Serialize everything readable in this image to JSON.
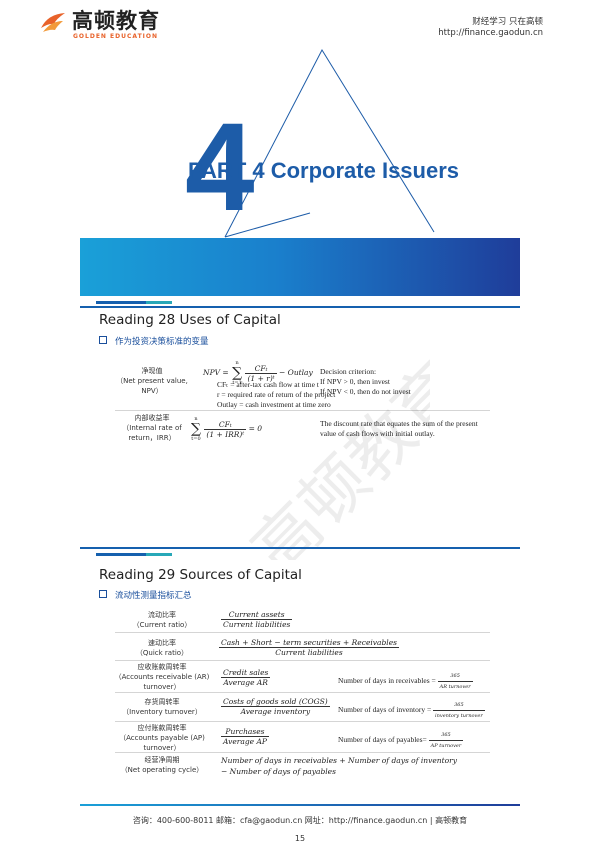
{
  "header": {
    "logo_cn": "高顿教育",
    "logo_en": "GOLDEN EDUCATION",
    "slogan": "财经学习 只在高顿",
    "url": "http://finance.gaodun.cn"
  },
  "title": {
    "part": "PART 4 Corporate Issuers",
    "big_numeral": "4"
  },
  "reading28": {
    "title": "Reading 28 Uses of Capital",
    "subtitle": "作为投资决策标准的变量",
    "npv": {
      "label_cn": "净现值",
      "label_en1": "（Net present value,",
      "label_en2": "NPV）",
      "lhs": "NPV =",
      "sum_top": "n",
      "sum_bottom": "t=1",
      "frac_num": "CFₜ",
      "frac_den": "(1 + r)ᵗ",
      "tail": "− Outlay",
      "def1": "CFₜ = after-tax cash flow at time t",
      "def2": "r = required rate of return of the project",
      "def3": "Outlay = cash investment at time zero",
      "criterion_title": "Decision criterion:",
      "criterion_1": "If NPV > 0, then invest",
      "criterion_2": "If NPV < 0, then do not invest"
    },
    "irr": {
      "label_cn": "内部收益率",
      "label_en1": "（Internal rate of",
      "label_en2": "return，IRR）",
      "sum_top": "n",
      "sum_bottom": "t=0",
      "frac_num": "CFₜ",
      "frac_den": "(1 + IRR)ᵗ",
      "tail": "= 0",
      "desc1": "The discount rate that equates the sum of the present",
      "desc2": "value of cash flows with initial outlay."
    }
  },
  "reading29": {
    "title": "Reading 29 Sources of Capital",
    "subtitle": "流动性测量指标汇总",
    "rows": [
      {
        "cn": "流动比率",
        "en1": "（Current ratio）",
        "en2": "",
        "num": "Current assets",
        "den": "Current liabilities",
        "note": "",
        "n_num": "",
        "n_den": ""
      },
      {
        "cn": "速动比率",
        "en1": "（Quick ratio）",
        "en2": "",
        "num": "Cash + Short − term securities + Receivables",
        "den": "Current liabilities",
        "note": "",
        "n_num": "",
        "n_den": ""
      },
      {
        "cn": "应收账款周转率",
        "en1": "（Accounts receivable (AR)",
        "en2": "turnover）",
        "num": "Credit sales",
        "den": "Average AR",
        "note": "Number of days in receivables =",
        "n_num": "365",
        "n_den": "AR turnover"
      },
      {
        "cn": "存货周转率",
        "en1": "（Inventory turnover）",
        "en2": "",
        "num": "Costs of goods sold (COGS)",
        "den": "Average inventory",
        "note": "Number of days of inventory =",
        "n_num": "365",
        "n_den": "inventory turnover"
      },
      {
        "cn": "应付账款周转率",
        "en1": "（Accounts payable (AP)",
        "en2": "turnover）",
        "num": "Purchases",
        "den": "Average AP",
        "note": "Number of days of payables=",
        "n_num": "365",
        "n_den": "AP turnover"
      }
    ],
    "cycle": {
      "cn": "经营净周期",
      "en1": "（Net operating cycle）",
      "line1": "Number of days in receivables + Number of days of inventory",
      "line2": "− Number of days of payables"
    }
  },
  "watermark": "高顿教育",
  "footer": {
    "contact": "咨询：400-600-8011  邮箱：cfa@gaodun.cn  网址：http://finance.gaodun.cn  | 高顿教育",
    "page": "15"
  },
  "colors": {
    "brand_blue": "#1d5ca8",
    "brand_orange": "#e8622a",
    "teal": "#28a8b8"
  }
}
